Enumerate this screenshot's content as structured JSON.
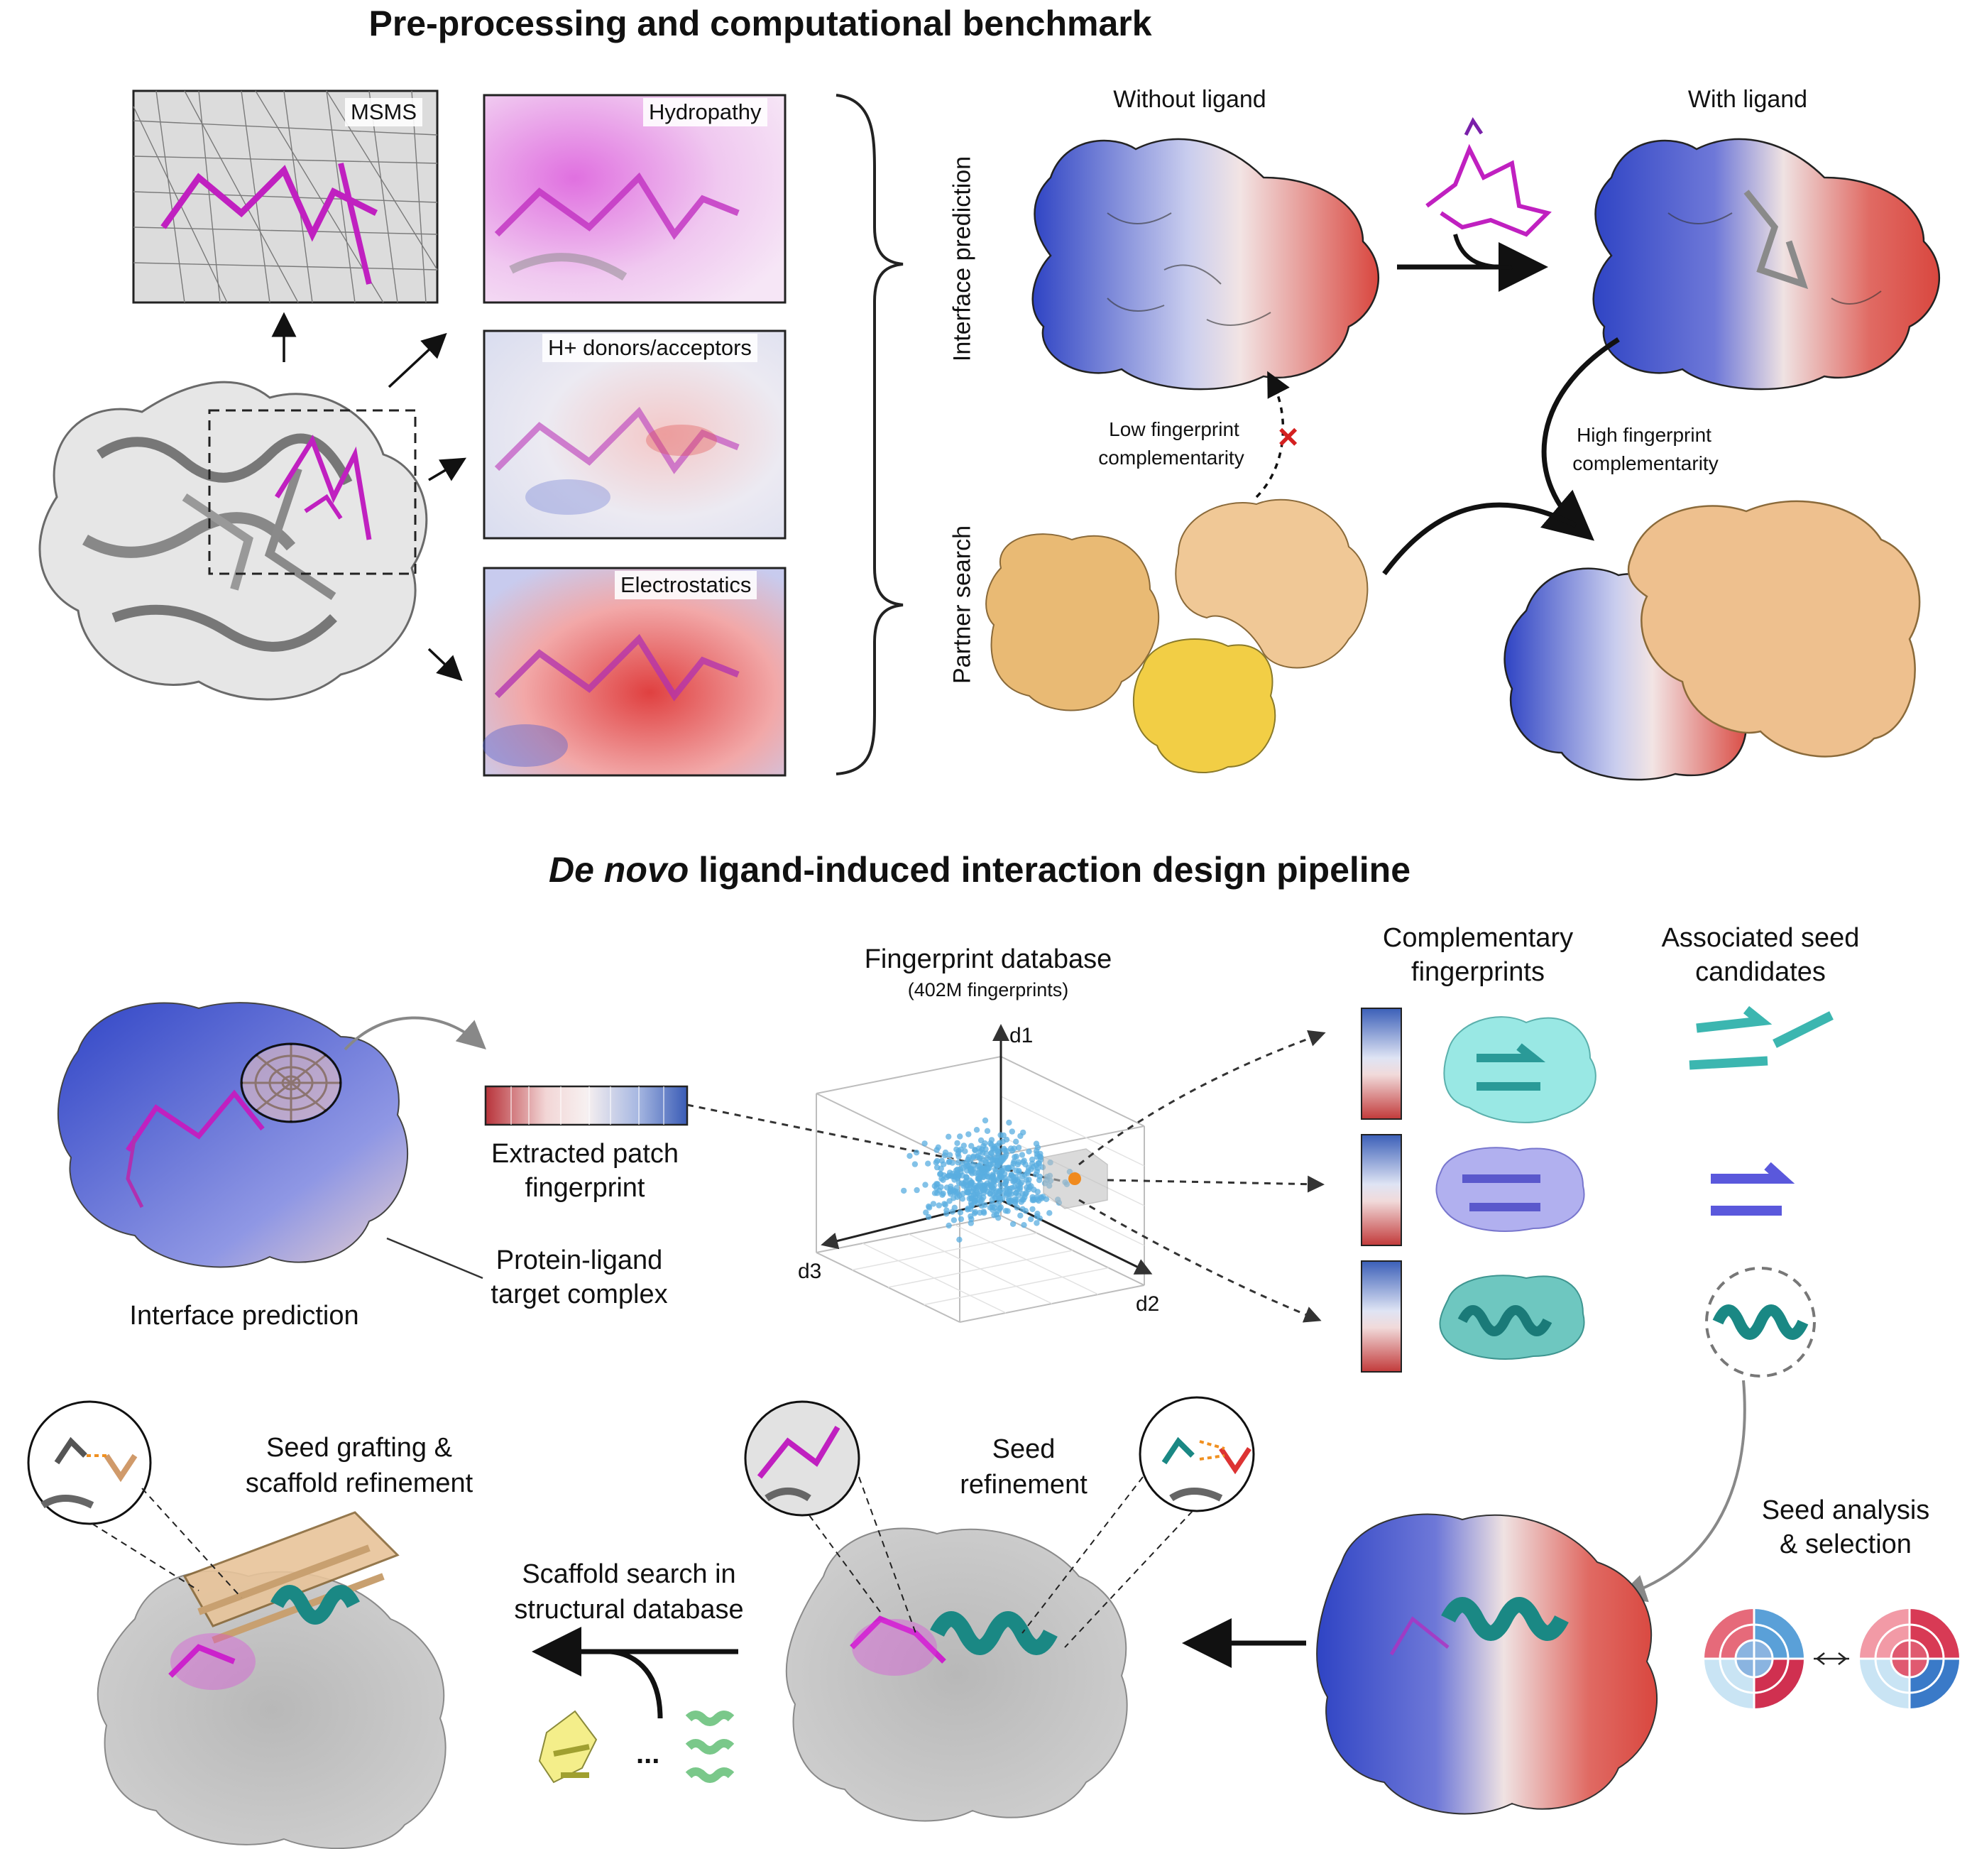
{
  "titles": {
    "top": "Pre-processing and computational benchmark",
    "bottom_italic": "De novo",
    "bottom_rest": "ligand-induced interaction design pipeline"
  },
  "panels": {
    "msms": "MSMS",
    "hydropathy": "Hydropathy",
    "hbond": "H+ donors/acceptors",
    "electrostatics": "Electrostatics"
  },
  "benchmark": {
    "interface_prediction": "Interface prediction",
    "partner_search": "Partner search",
    "without_ligand": "Without ligand",
    "with_ligand": "With ligand",
    "low_line1": "Low fingerprint",
    "low_line2": "complementarity",
    "high_line1": "High fingerprint",
    "high_line2": "complementarity"
  },
  "pipeline": {
    "interface_prediction": "Interface prediction",
    "target_line1": "Protein-ligand",
    "target_line2": "target complex",
    "patch_line1": "Extracted patch",
    "patch_line2": "fingerprint",
    "db_title": "Fingerprint database",
    "db_sub": "(402M fingerprints)",
    "axes": {
      "d1": "d1",
      "d2": "d2",
      "d3": "d3"
    },
    "comp_line1": "Complementary",
    "comp_line2": "fingerprints",
    "seed_line1": "Associated seed",
    "seed_line2": "candidates",
    "analysis_line1": "Seed analysis",
    "analysis_line2": "& selection",
    "refine_line1": "Seed",
    "refine_line2": "refinement",
    "scaffold_line1": "Scaffold search in",
    "scaffold_line2": "structural database",
    "graft_line1": "Seed grafting &",
    "graft_line2": "scaffold refinement",
    "ellipsis": "..."
  },
  "colors": {
    "blue": "#3b4fc8",
    "red": "#d9473f",
    "magenta": "#cc22cc",
    "wheat": "#e8be8a",
    "yellow": "#f0d24a",
    "teal": "#1e8f8f",
    "cyan": "#7fe0dc",
    "violet": "#8a88e6",
    "gray": "#9a9a9a",
    "point": "#5aaee0",
    "query": "#f08a1e"
  }
}
